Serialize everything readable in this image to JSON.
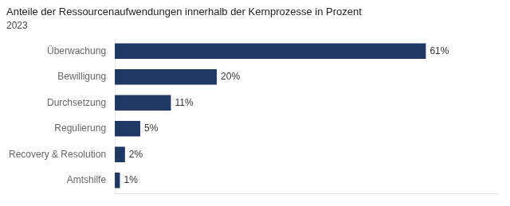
{
  "chart_data": {
    "type": "bar",
    "orientation": "horizontal",
    "title": "Anteile der Ressourcenaufwendungen innerhalb der Kernprozesse in Prozent",
    "subtitle": "2023",
    "categories": [
      "Überwachung",
      "Bewilligung",
      "Durchsetzung",
      "Regulierung",
      "Recovery & Resolution",
      "Amtshilfe"
    ],
    "values": [
      61,
      20,
      11,
      5,
      2,
      1
    ],
    "value_labels": [
      "61%",
      "20%",
      "11%",
      "5%",
      "2%",
      "1%"
    ],
    "data_labels": true,
    "color": "#1f3864",
    "xlim": [
      0,
      75
    ],
    "tick_labels": "y",
    "grid": false
  }
}
